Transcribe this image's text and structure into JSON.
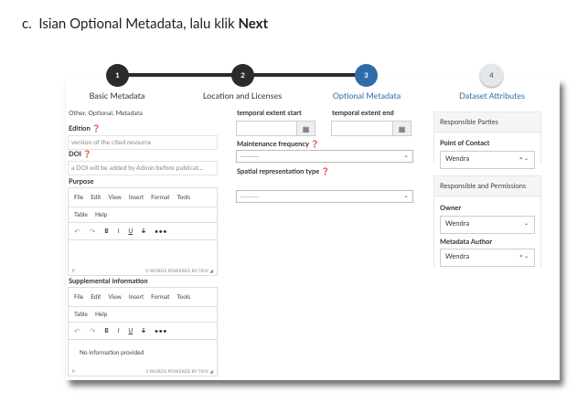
{
  "heading": {
    "prefix": "c.",
    "text": "Isian Optional Metadata, lalu klik ",
    "bold": "Next"
  },
  "stepper": [
    {
      "num": "1",
      "label": "Basic Metadata",
      "state": "done"
    },
    {
      "num": "2",
      "label": "Location and Licenses",
      "state": "done"
    },
    {
      "num": "3",
      "label": "Optional Metadata",
      "state": "active"
    },
    {
      "num": "4",
      "label": "Dataset Attributes",
      "state": "pending"
    }
  ],
  "left": {
    "category": "Other, Optional, Metadata",
    "edition_label": "Edition",
    "edition_placeholder": "version of the cited resource",
    "doi_label": "DOI",
    "doi_placeholder": "a DOI will be added by Admin before publicat...",
    "purpose_label": "Purpose",
    "supp_label": "Supplemental information",
    "menu": [
      "File",
      "Edit",
      "View",
      "Insert",
      "Format",
      "Tools"
    ],
    "menu2": [
      "Table",
      "Help"
    ],
    "toolbar": {
      "undo": "↶",
      "redo": "↷",
      "bold": "B",
      "italic": "I",
      "underline": "U",
      "strike": "S",
      "more": "•••"
    },
    "purpose_status": {
      "path": "P",
      "words": "0 WORDS",
      "powered": "POWERED BY TINY"
    },
    "supp_content": "No information provided",
    "supp_status": {
      "path": "P",
      "words": "3 WORDS",
      "powered": "POWERED BY TINY"
    }
  },
  "middle": {
    "start_label": "temporal extent start",
    "end_label": "temporal extent end",
    "maint_label": "Maintenance frequency",
    "maint_value": "---------",
    "spatial_label": "Spatial representation type",
    "spatial_value": "---------"
  },
  "right": {
    "panel1_title": "Responsible Parties",
    "poc_label": "Point of Contact",
    "poc_value": "Wendra",
    "panel2_title": "Responsible and Permissions",
    "owner_label": "Owner",
    "owner_value": "Wendra",
    "author_label": "Metadata Author",
    "author_value": "Wendra"
  },
  "colors": {
    "active": "#2d6ca8",
    "done": "#2b2b2b"
  }
}
